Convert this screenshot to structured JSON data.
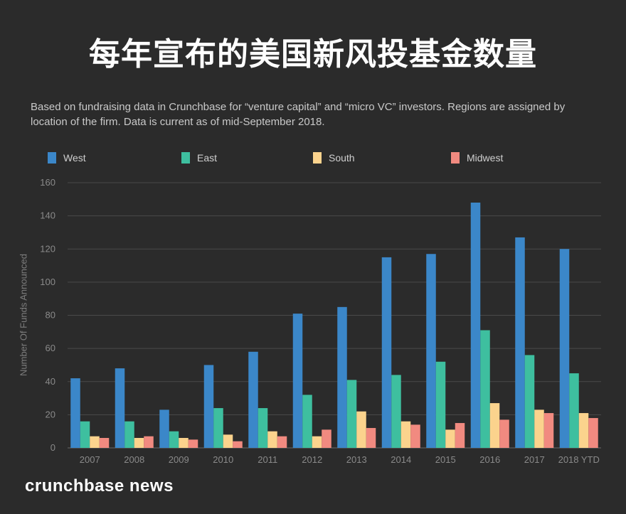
{
  "header": {
    "title": "每年宣布的美国新风投基金数量",
    "subtitle": "Based on fundraising data in Crunchbase for “venture capital” and “micro VC” investors. Regions are assigned by location of the firm. Data is current as of mid-September 2018."
  },
  "footer": {
    "brand": "crunchbase news"
  },
  "chart_data": {
    "type": "bar",
    "ylabel": "Number Of Funds Announced",
    "xlabel": "",
    "ylim": [
      0,
      160
    ],
    "yticks": [
      0,
      20,
      40,
      60,
      80,
      100,
      120,
      140,
      160
    ],
    "grid": true,
    "legend_position": "top",
    "categories": [
      "2007",
      "2008",
      "2009",
      "2010",
      "2011",
      "2012",
      "2013",
      "2014",
      "2015",
      "2016",
      "2017",
      "2018 YTD"
    ],
    "series": [
      {
        "name": "West",
        "color": "#3b87c9",
        "values": [
          42,
          48,
          23,
          50,
          58,
          81,
          85,
          115,
          117,
          148,
          127,
          120
        ]
      },
      {
        "name": "East",
        "color": "#3ebf9f",
        "values": [
          16,
          16,
          10,
          24,
          24,
          32,
          41,
          44,
          52,
          71,
          56,
          45
        ]
      },
      {
        "name": "South",
        "color": "#fbd38d",
        "values": [
          7,
          6,
          6,
          8,
          10,
          7,
          22,
          16,
          11,
          27,
          23,
          21
        ]
      },
      {
        "name": "Midwest",
        "color": "#f18a80",
        "values": [
          6,
          7,
          5,
          4,
          7,
          11,
          12,
          14,
          15,
          17,
          21,
          18
        ]
      }
    ]
  }
}
